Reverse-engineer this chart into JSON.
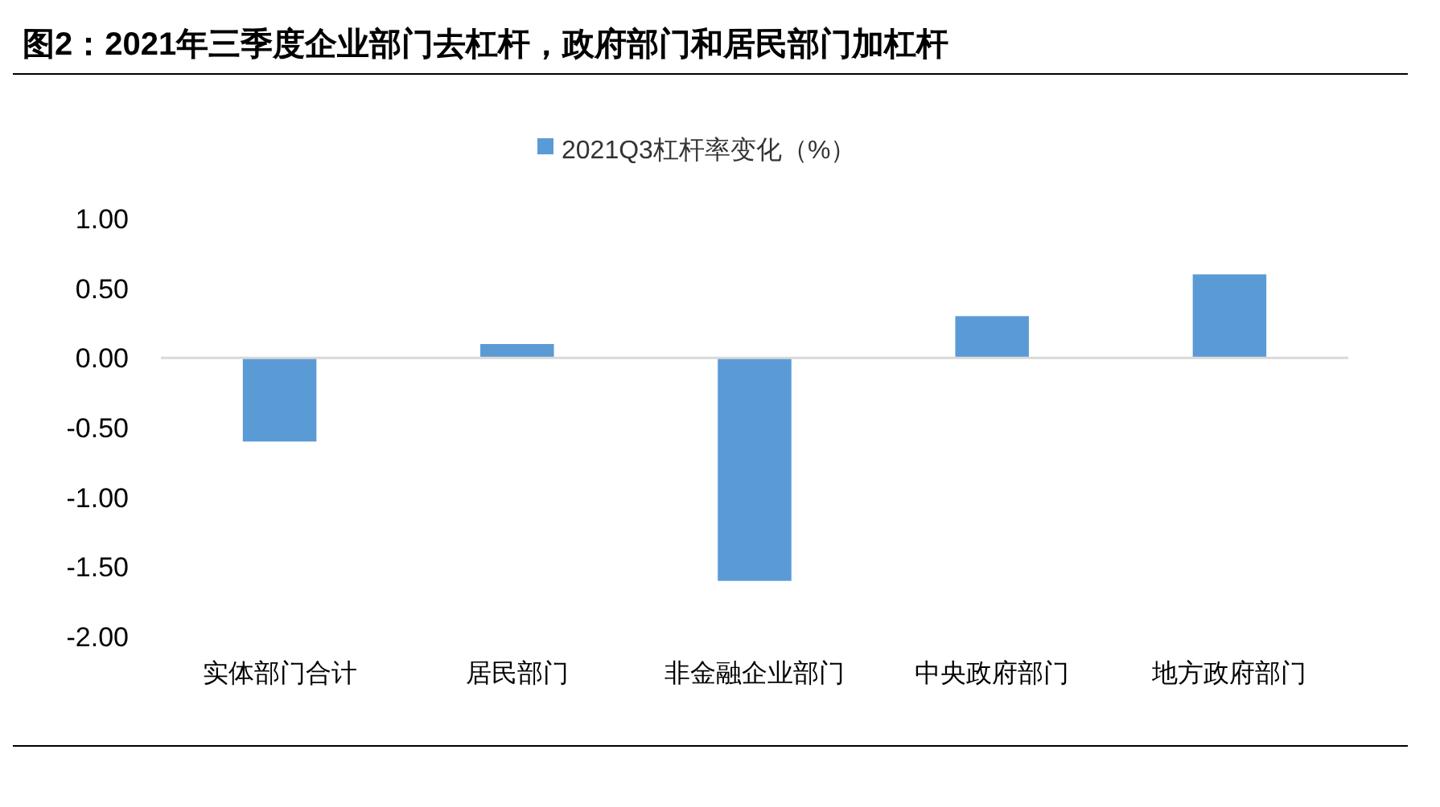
{
  "chart_data": {
    "type": "bar",
    "title": "图2：2021年三季度企业部门去杠杆，政府部门和居民部门加杠杆",
    "categories": [
      "实体部门合计",
      "居民部门",
      "非金融企业部门",
      "中央政府部门",
      "地方政府部门"
    ],
    "series": [
      {
        "name": "2021Q3杠杆率变化（%）",
        "color": "#5b9bd5",
        "values": [
          -0.6,
          0.1,
          -1.6,
          0.3,
          0.6
        ]
      }
    ],
    "ylim": [
      -2,
      1
    ],
    "yticks": [
      {
        "value": -2,
        "label": "-2.00"
      },
      {
        "value": -1.5,
        "label": "-1.50"
      },
      {
        "value": -1,
        "label": "-1.00"
      },
      {
        "value": -0.5,
        "label": "-0.50"
      },
      {
        "value": 0,
        "label": "0.00"
      },
      {
        "value": 0.5,
        "label": "0.50"
      },
      {
        "value": 1,
        "label": "1.00"
      }
    ],
    "legend": "top"
  }
}
